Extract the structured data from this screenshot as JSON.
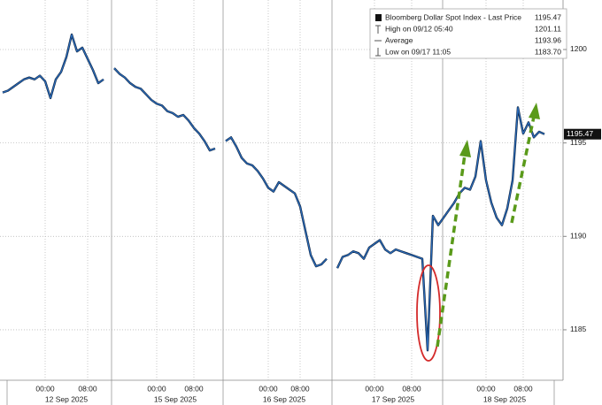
{
  "chart_data": {
    "type": "line",
    "categories": [
      null,
      null,
      null,
      null,
      null,
      null,
      null,
      null,
      "00:00",
      null,
      null,
      null,
      null,
      null,
      null,
      null,
      "08:00",
      null,
      null,
      null,
      null,
      null,
      null,
      null,
      null,
      null,
      null,
      null,
      null,
      "00:00",
      null,
      null,
      null,
      null,
      null,
      null,
      "08:00",
      null,
      null,
      null,
      null,
      null,
      null,
      null,
      null,
      null,
      null,
      null,
      null,
      null,
      "00:00",
      null,
      null,
      null,
      null,
      null,
      "08:00",
      null,
      null,
      null,
      null,
      null,
      null,
      null,
      null,
      null,
      null,
      null,
      null,
      null,
      "00:00",
      null,
      null,
      null,
      null,
      null,
      null,
      "08:00",
      null,
      null,
      null,
      null,
      null,
      null,
      null,
      null,
      null,
      null,
      null,
      null,
      null,
      "00:00",
      null,
      null,
      null,
      null,
      null,
      null,
      "08:00",
      null,
      null,
      null,
      null
    ],
    "date_labels": [
      "12 Sep 2025",
      "15 Sep 2025",
      "16 Sep 2025",
      "17 Sep 2025",
      "18 Sep 2025"
    ],
    "series": [
      {
        "name": "Bloomberg Dollar Spot Index - Last Price",
        "color": "#2a6ab8",
        "values": [
          1197.7,
          1197.8,
          1198.0,
          1198.2,
          1198.4,
          1198.5,
          1198.4,
          1198.6,
          1198.3,
          1197.4,
          1198.4,
          1198.8,
          1199.6,
          1200.8,
          1199.9,
          1200.1,
          1199.5,
          1198.9,
          1198.2,
          1198.4,
          null,
          1199.0,
          1198.7,
          1198.5,
          1198.2,
          1198.0,
          1197.9,
          1197.6,
          1197.3,
          1197.1,
          1197.0,
          1196.7,
          1196.6,
          1196.4,
          1196.5,
          1196.2,
          1195.8,
          1195.5,
          1195.1,
          1194.6,
          1194.7,
          null,
          1195.1,
          1195.3,
          1194.8,
          1194.2,
          1193.9,
          1193.8,
          1193.5,
          1193.1,
          1192.6,
          1192.4,
          1192.9,
          1192.7,
          1192.5,
          1192.3,
          1191.6,
          1190.3,
          1189.0,
          1188.4,
          1188.5,
          1188.8,
          null,
          1188.3,
          1188.9,
          1189.0,
          1189.2,
          1189.1,
          1188.8,
          1189.4,
          1189.6,
          1189.8,
          1189.3,
          1189.1,
          1189.3,
          1189.2,
          1189.1,
          1189.0,
          1188.9,
          1188.8,
          1183.9,
          1191.1,
          1190.6,
          1191.0,
          1191.4,
          1191.8,
          1192.3,
          1192.6,
          1192.5,
          1193.2,
          1195.1,
          1193.0,
          1191.8,
          1191.0,
          1190.6,
          1191.5,
          1193.0,
          1196.9,
          1195.5,
          1196.1,
          1195.3,
          1195.6,
          1195.47
        ]
      }
    ],
    "legend": [
      {
        "label": "Bloomberg Dollar Spot Index - Last Price",
        "value": "1195.47"
      },
      {
        "label": "High on 09/12 05:40",
        "value": "1201.11"
      },
      {
        "label": "Average",
        "value": "1193.96"
      },
      {
        "label": "Low on 09/17 11:05",
        "value": "1183.70"
      }
    ],
    "ylim": [
      1182.3,
      1202.65
    ],
    "yticks": [
      1185,
      1190,
      1195,
      1200
    ],
    "grid": true
  }
}
